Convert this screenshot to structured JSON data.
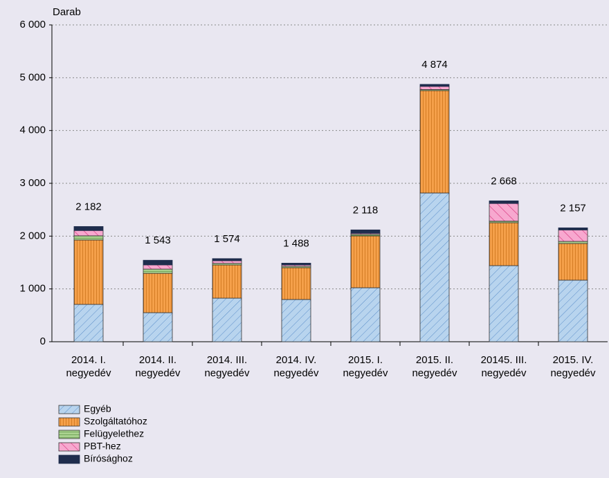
{
  "chart_data": {
    "type": "stacked_bar",
    "y_label": "Darab",
    "categories": [
      [
        "2014. I.",
        "negyedév"
      ],
      [
        "2014. II.",
        "negyedév"
      ],
      [
        "2014. III.",
        "negyedév"
      ],
      [
        "2014. IV.",
        "negyedév"
      ],
      [
        "2015. I.",
        "negyedév"
      ],
      [
        "2015. II.",
        "negyedév"
      ],
      [
        "20145. III.",
        "negyedév"
      ],
      [
        "2015. IV.",
        "negyedév"
      ]
    ],
    "series": [
      {
        "name": "Egyéb",
        "color": "#b8d4ee",
        "values": [
          707,
          550,
          825,
          800,
          1022,
          2817,
          1441,
          1166
        ]
      },
      {
        "name": "Szolgáltatóhoz",
        "color": "#f5a04a",
        "values": [
          1219,
          745,
          629,
          602,
          982,
          1939,
          812,
          694
        ]
      },
      {
        "name": "Felügyelethez",
        "color": "#a9d18e",
        "values": [
          80,
          80,
          30,
          25,
          30,
          20,
          30,
          40
        ]
      },
      {
        "name": "PBT-hez",
        "color": "#f7a8cf",
        "values": [
          100,
          80,
          50,
          26,
          20,
          60,
          335,
          217
        ]
      },
      {
        "name": "Bírósághoz",
        "color": "#1f2d4d",
        "values": [
          76,
          88,
          40,
          35,
          64,
          38,
          50,
          40
        ]
      }
    ],
    "totals": [
      2182,
      1543,
      1574,
      1488,
      2118,
      4874,
      2668,
      2157
    ],
    "total_labels": [
      "2 182",
      "1 543",
      "1 574",
      "1 488",
      "2 118",
      "4 874",
      "2 668",
      "2 157"
    ],
    "ylim": [
      0,
      6000
    ],
    "yticks": [
      0,
      {
        "value": 1000,
        "label": "1 000"
      },
      {
        "value": 2000,
        "label": "2 000"
      },
      {
        "value": 3000,
        "label": "3 000"
      },
      {
        "value": 4000,
        "label": "4 000"
      },
      {
        "value": 5000,
        "label": "5 000"
      },
      {
        "value": 6000,
        "label": "6 000"
      }
    ],
    "grid": true
  }
}
